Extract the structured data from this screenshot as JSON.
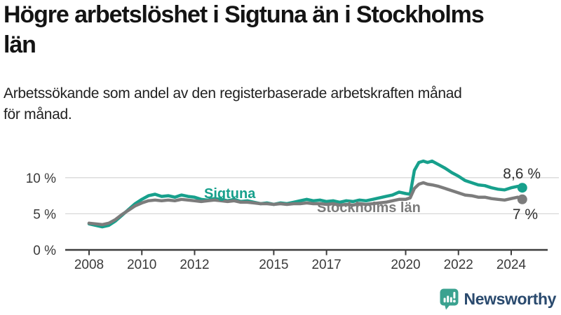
{
  "header": {
    "title": "Högre arbetslöshet i Sigtuna än i Stockholms län",
    "title_lines": [
      "Högre arbetslöshet i Sigtuna än i Stockholms",
      "län"
    ],
    "subtitle": "Arbetssökande som andel av den registerbaserade arbetskraften månad för månad.",
    "subtitle_lines": [
      "Arbetssökande som andel av den registerbaserade arbetskraften månad",
      "för månad."
    ]
  },
  "chart_data": {
    "type": "line",
    "title": "",
    "xlabel": "",
    "ylabel": "",
    "ylim": [
      0,
      13
    ],
    "xlim": [
      2007.5,
      2025
    ],
    "grid": true,
    "legend_position": "inline-labels",
    "x_ticks": [
      2008,
      2010,
      2012,
      2015,
      2017,
      2020,
      2022,
      2024
    ],
    "y_ticks": [
      {
        "value": 0,
        "label": "0 %"
      },
      {
        "value": 5,
        "label": "5 %"
      },
      {
        "value": 10,
        "label": "10 %"
      }
    ],
    "x": [
      2008.0,
      2008.25,
      2008.5,
      2008.75,
      2009.0,
      2009.25,
      2009.5,
      2009.75,
      2010.0,
      2010.25,
      2010.5,
      2010.75,
      2011.0,
      2011.25,
      2011.5,
      2011.75,
      2012.0,
      2012.25,
      2012.5,
      2012.75,
      2013.0,
      2013.25,
      2013.5,
      2013.75,
      2014.0,
      2014.25,
      2014.5,
      2014.75,
      2015.0,
      2015.25,
      2015.5,
      2015.75,
      2016.0,
      2016.25,
      2016.5,
      2016.75,
      2017.0,
      2017.25,
      2017.5,
      2017.75,
      2018.0,
      2018.25,
      2018.5,
      2018.75,
      2019.0,
      2019.25,
      2019.5,
      2019.75,
      2020.0,
      2020.17,
      2020.33,
      2020.5,
      2020.67,
      2020.83,
      2021.0,
      2021.25,
      2021.5,
      2021.75,
      2022.0,
      2022.25,
      2022.5,
      2022.75,
      2023.0,
      2023.25,
      2023.5,
      2023.75,
      2024.0,
      2024.25,
      2024.42
    ],
    "series": [
      {
        "name": "Sigtuna",
        "color": "#17a08c",
        "end_label": "8,6 %",
        "end_value": 8.6,
        "values": [
          3.6,
          3.4,
          3.2,
          3.4,
          4.0,
          4.8,
          5.6,
          6.4,
          7.0,
          7.5,
          7.7,
          7.4,
          7.5,
          7.3,
          7.6,
          7.4,
          7.3,
          7.0,
          6.9,
          7.1,
          7.0,
          6.8,
          7.0,
          6.7,
          6.8,
          6.6,
          6.4,
          6.5,
          6.3,
          6.5,
          6.4,
          6.6,
          6.8,
          7.0,
          6.8,
          6.9,
          6.7,
          6.8,
          6.6,
          6.8,
          6.7,
          6.9,
          6.8,
          7.0,
          7.2,
          7.4,
          7.6,
          8.0,
          7.8,
          7.7,
          11.0,
          12.1,
          12.3,
          12.1,
          12.3,
          11.8,
          11.3,
          10.7,
          10.2,
          9.6,
          9.3,
          9.0,
          8.9,
          8.6,
          8.4,
          8.3,
          8.6,
          8.8,
          8.6
        ]
      },
      {
        "name": "Stockholms län",
        "color": "#7c7c7c",
        "end_label": "7 %",
        "end_value": 7.0,
        "values": [
          3.7,
          3.6,
          3.5,
          3.7,
          4.2,
          4.9,
          5.5,
          6.1,
          6.5,
          6.8,
          6.9,
          6.8,
          6.9,
          6.8,
          7.0,
          6.9,
          6.8,
          6.7,
          6.8,
          6.9,
          6.8,
          6.7,
          6.8,
          6.6,
          6.6,
          6.5,
          6.4,
          6.4,
          6.3,
          6.4,
          6.3,
          6.4,
          6.4,
          6.5,
          6.4,
          6.4,
          6.3,
          6.4,
          6.2,
          6.3,
          6.2,
          6.4,
          6.3,
          6.4,
          6.5,
          6.6,
          6.8,
          7.0,
          7.0,
          7.2,
          8.5,
          9.1,
          9.3,
          9.1,
          9.0,
          8.8,
          8.5,
          8.2,
          7.9,
          7.6,
          7.5,
          7.3,
          7.3,
          7.1,
          7.0,
          6.9,
          7.1,
          7.3,
          7.0
        ]
      }
    ],
    "colors": {
      "gridline": "#d8d8d8",
      "axis": "#3d3d3d",
      "tick_label": "#3a3a3a",
      "end_label_text": "#2e2e2e"
    }
  },
  "footer": {
    "brand": "Newsworthy",
    "brand_text_color": "#2a4a6e",
    "brand_icon": "newsworthy-chart-bubble-icon",
    "brand_icon_color": "#3ba290"
  }
}
